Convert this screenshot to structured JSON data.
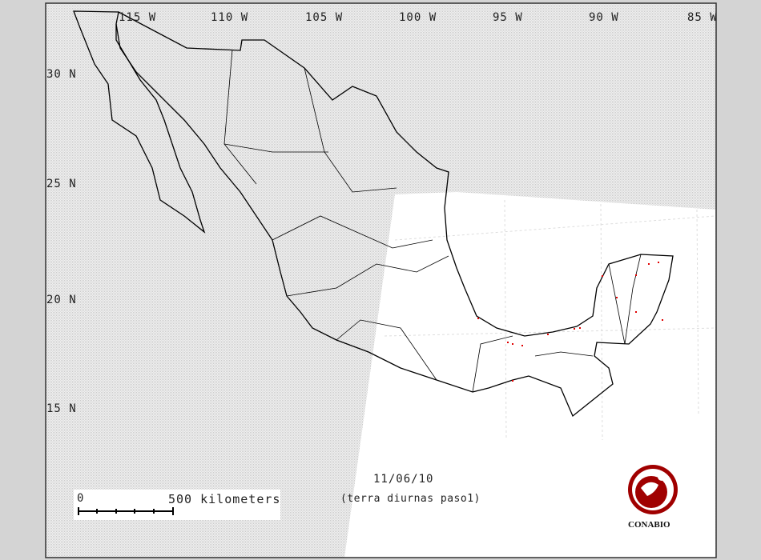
{
  "map": {
    "date": "11/06/10",
    "subtitle": "(terra diurnas paso1)",
    "longitude_labels": [
      "115 W",
      "110 W",
      "105 W",
      "100 W",
      "95 W",
      "90 W",
      "85 W"
    ],
    "latitude_labels": [
      "30 N",
      "25 N",
      "20 N",
      "15 N"
    ],
    "scale": {
      "start_label": "0",
      "end_label": "500 kilometers"
    },
    "logo_text": "CONABIO",
    "colors": {
      "fire_points": "#e00000",
      "logo": "#a00000",
      "outline": "#000000",
      "swath": "#ffffff",
      "no_data": "#e6e6e6"
    }
  }
}
